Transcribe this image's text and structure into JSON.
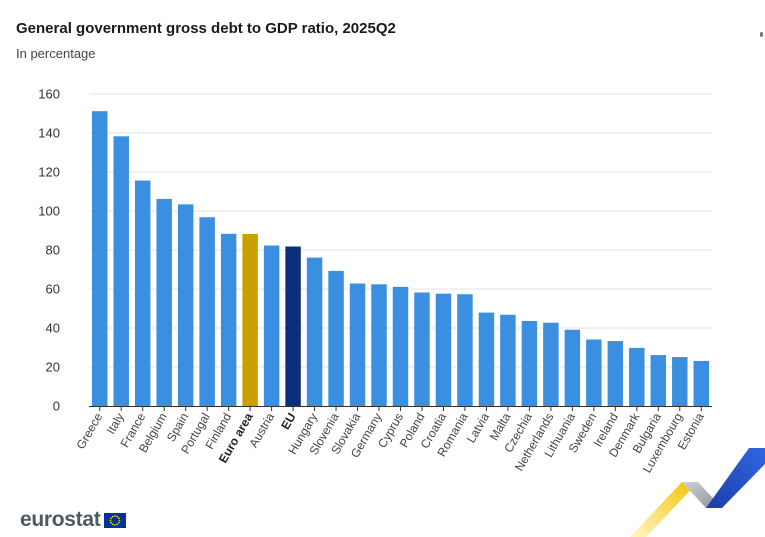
{
  "header": {
    "title": "General government gross debt to GDP ratio, 2025Q2",
    "subtitle": "In percentage"
  },
  "footer": {
    "logo_text": "eurostat"
  },
  "colors": {
    "bar": "#3b8fe0",
    "highlight_euro_area": "#c8a000",
    "highlight_eu": "#0d2f7a",
    "gridline": "#e6e6e6",
    "axis": "#333333"
  },
  "chart_data": {
    "type": "bar",
    "title": "General government gross debt to GDP ratio, 2025Q2",
    "subtitle": "In percentage",
    "xlabel": "",
    "ylabel": "",
    "ylim": [
      0,
      160
    ],
    "yticks": [
      0,
      20,
      40,
      60,
      80,
      100,
      120,
      140,
      160
    ],
    "grid": true,
    "categories": [
      "Greece",
      "Italy",
      "France",
      "Belgium",
      "Spain",
      "Portugal",
      "Finland",
      "Euro area",
      "Austria",
      "EU",
      "Hungary",
      "Slovenia",
      "Slovakia",
      "Germany",
      "Cyprus",
      "Poland",
      "Croatia",
      "Romania",
      "Latvia",
      "Malta",
      "Czechia",
      "Netherlands",
      "Lithuania",
      "Sweden",
      "Ireland",
      "Denmark",
      "Bulgaria",
      "Luxembourg",
      "Estonia"
    ],
    "values": [
      151.2,
      138.3,
      115.6,
      106.2,
      103.4,
      96.8,
      88.3,
      88.2,
      82.3,
      81.8,
      76.1,
      69.3,
      62.8,
      62.4,
      61.1,
      58.2,
      57.6,
      57.3,
      47.9,
      46.8,
      43.6,
      42.7,
      39.1,
      34.1,
      33.3,
      29.8,
      26.1,
      25.1,
      23.1
    ],
    "highlighted": {
      "Euro area": "highlight_euro_area",
      "EU": "highlight_eu"
    },
    "bold_labels": [
      "Euro area",
      "EU"
    ]
  }
}
